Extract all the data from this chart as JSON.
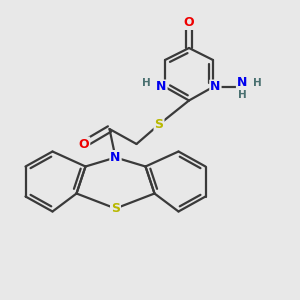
{
  "bg_color": "#e8e8e8",
  "atom_colors": {
    "C": "#3a3a3a",
    "N": "#0000ee",
    "O": "#ee0000",
    "S": "#b8b800",
    "H": "#4a7070"
  },
  "bond_color": "#3a3a3a",
  "bond_width": 1.6,
  "dbl_sep": 0.13,
  "figsize": [
    3.0,
    3.0
  ],
  "dpi": 100
}
